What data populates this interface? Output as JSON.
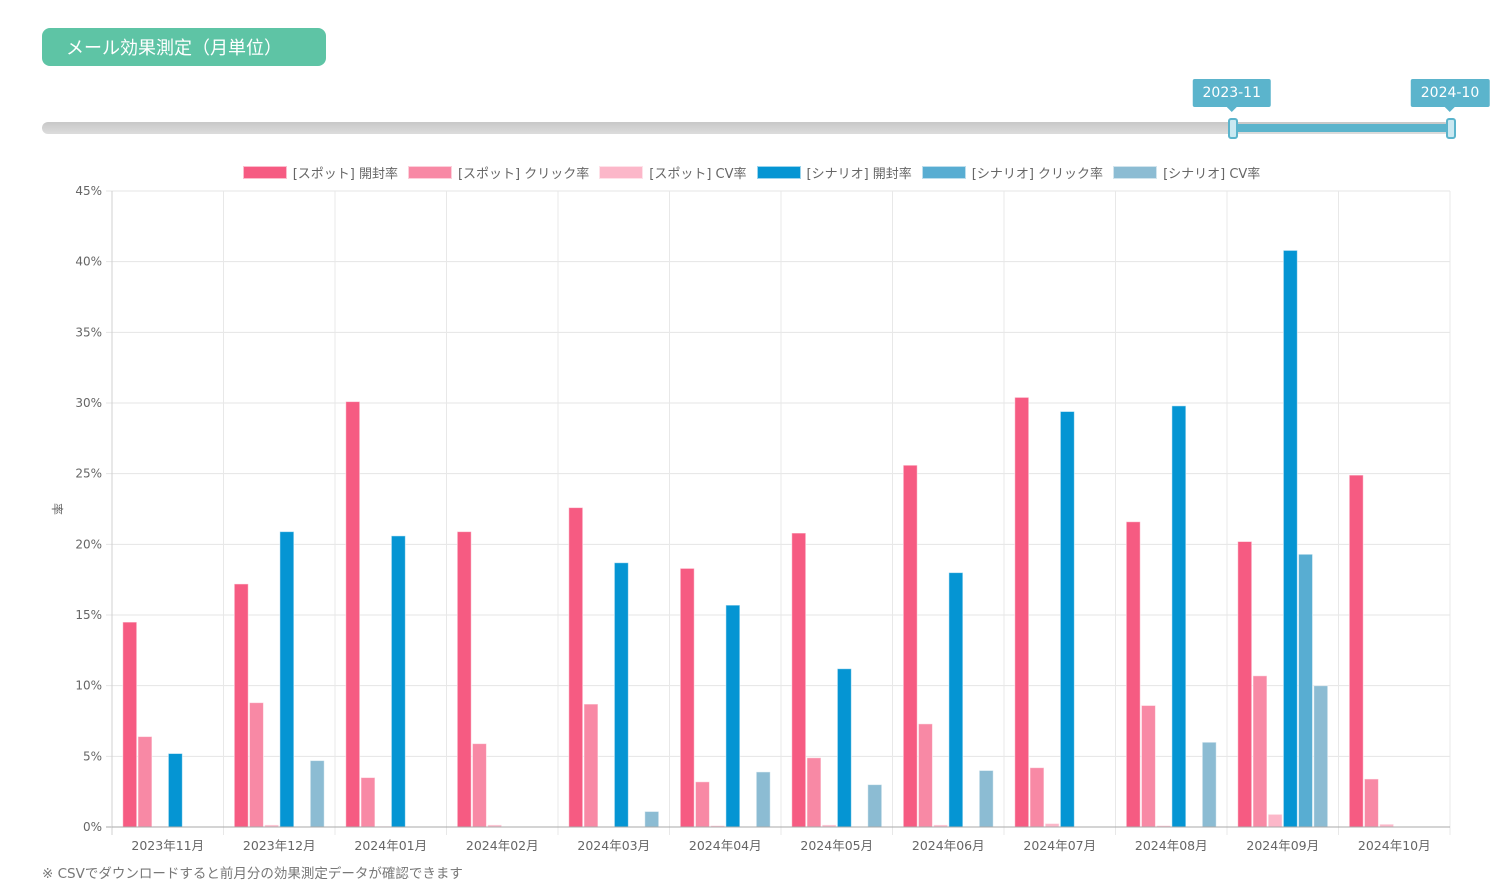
{
  "header": {
    "title": "メール効果測定（月単位）"
  },
  "range_slider": {
    "start_label": "2023-11",
    "end_label": "2024-10",
    "start_fraction": 0.845,
    "end_fraction": 1.0
  },
  "footnote": "※ CSVでダウンロードすると前月分の効果測定データが確認できます",
  "chart_data": {
    "type": "bar",
    "title": "",
    "xlabel": "",
    "ylabel": "率",
    "ylim": [
      0,
      45
    ],
    "yticks": [
      0,
      5,
      10,
      15,
      20,
      25,
      30,
      35,
      40,
      45
    ],
    "ytick_labels": [
      "0%",
      "5%",
      "10%",
      "15%",
      "20%",
      "25%",
      "30%",
      "35%",
      "40%",
      "45%"
    ],
    "grid": true,
    "legend_position": "top-center",
    "categories": [
      "2023年11月",
      "2023年12月",
      "2024年01月",
      "2024年02月",
      "2024年03月",
      "2024年04月",
      "2024年05月",
      "2024年06月",
      "2024年07月",
      "2024年08月",
      "2024年09月",
      "2024年10月"
    ],
    "series": [
      {
        "name": "[スポット] 開封率",
        "color": "#f65b82",
        "values": [
          14.5,
          17.2,
          30.1,
          20.9,
          22.6,
          18.3,
          20.8,
          25.6,
          30.4,
          21.6,
          20.2,
          24.9
        ]
      },
      {
        "name": "[スポット] クリック率",
        "color": "#f889a5",
        "values": [
          6.4,
          8.8,
          3.5,
          5.9,
          8.7,
          3.2,
          4.9,
          7.3,
          4.2,
          8.6,
          10.7,
          3.4
        ]
      },
      {
        "name": "[スポット] CV率",
        "color": "#fcb7c9",
        "values": [
          0.05,
          0.15,
          0.05,
          0.15,
          0,
          0.1,
          0.15,
          0.15,
          0.25,
          0.1,
          0.9,
          0.2
        ]
      },
      {
        "name": "[シナリオ] 開封率",
        "color": "#0595d3",
        "values": [
          5.2,
          20.9,
          20.6,
          0,
          18.7,
          15.7,
          11.2,
          18.0,
          29.4,
          29.8,
          40.8,
          0
        ]
      },
      {
        "name": "[シナリオ] クリック率",
        "color": "#58add2",
        "values": [
          0,
          0,
          0,
          0,
          0,
          0,
          0,
          0,
          0,
          0,
          19.3,
          0
        ]
      },
      {
        "name": "[シナリオ] CV率",
        "color": "#8cbcd3",
        "values": [
          0,
          4.7,
          0,
          0,
          1.1,
          3.9,
          3.0,
          4.0,
          0,
          6.0,
          10.0,
          0
        ]
      }
    ]
  }
}
